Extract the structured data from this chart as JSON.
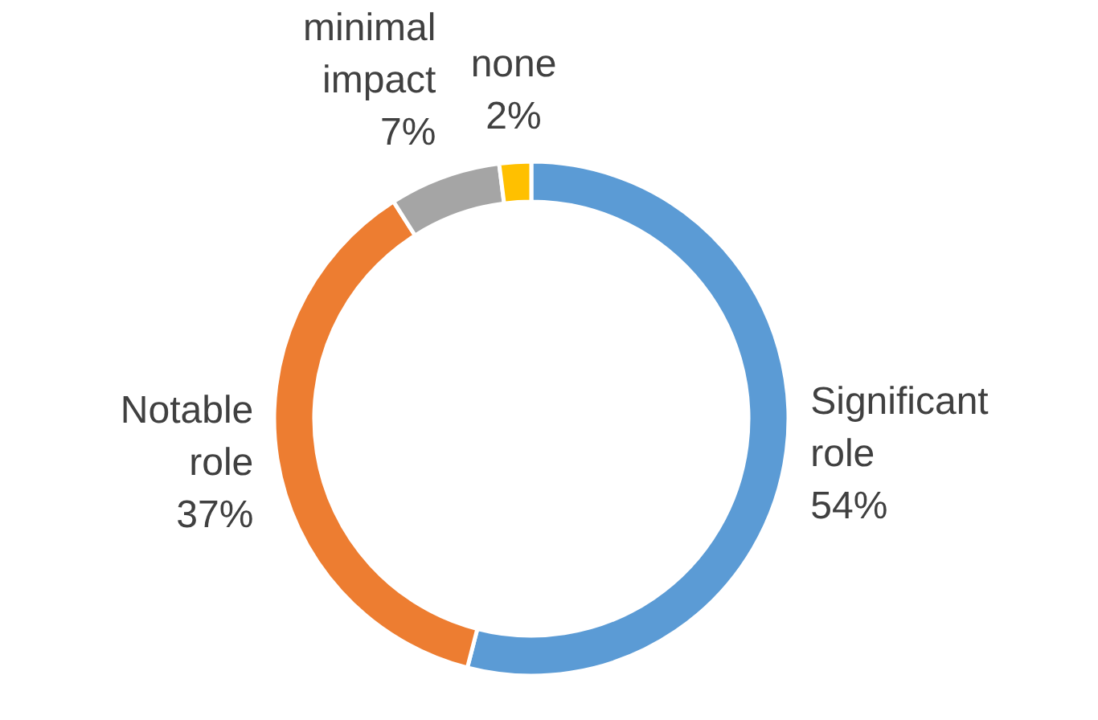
{
  "chart_data": {
    "type": "donut",
    "categories": [
      "Significant role",
      "Notable role",
      "minimal impact",
      "none"
    ],
    "values": [
      54,
      37,
      7,
      2
    ],
    "colors": [
      "#5b9bd5",
      "#ed7d31",
      "#a5a5a5",
      "#ffc000"
    ],
    "value_labels": [
      "54%",
      "37%",
      "7%",
      "2%"
    ]
  }
}
